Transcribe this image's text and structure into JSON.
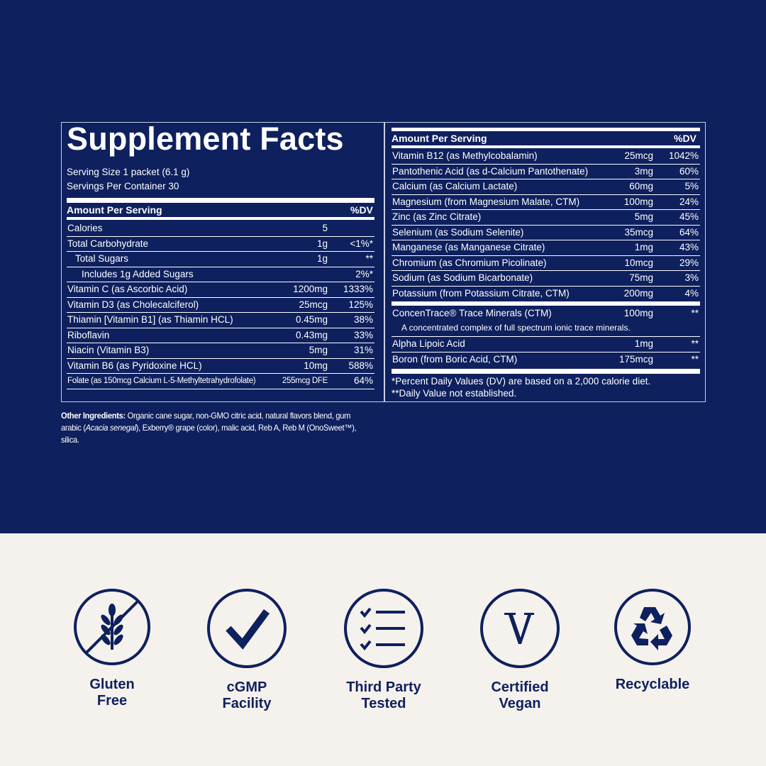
{
  "label": {
    "title": "Supplement Facts",
    "serving_size": "Serving Size 1 packet (6.1 g)",
    "servings_per_container": "Servings Per Container 30",
    "left": {
      "header": {
        "amount": "Amount Per Serving",
        "dv": "%DV"
      },
      "rows": [
        {
          "name": "Calories",
          "amount": "5"
        },
        {
          "name": "Total Carbohydrate",
          "amount": "1g",
          "dv": "<1%*",
          "sub": [
            {
              "name": "Total Sugars",
              "amount": "1g",
              "dv": "**",
              "sub": [
                {
                  "name": "Includes 1g Added Sugars",
                  "dv": "2%*"
                }
              ]
            }
          ]
        },
        {
          "name": "Vitamin C (as Ascorbic Acid)",
          "amount": "1200mg",
          "dv": "1333%"
        },
        {
          "name": "Vitamin D3 (as Cholecalciferol)",
          "amount": "25mcg",
          "dv": "125%"
        },
        {
          "name": "Thiamin [Vitamin B1] (as Thiamin HCL)",
          "amount": "0.45mg",
          "dv": "38%"
        },
        {
          "name": "Riboflavin",
          "amount": "0.43mg",
          "dv": "33%"
        },
        {
          "name": "Niacin (Vitamin B3)",
          "amount": "5mg",
          "dv": "31%"
        },
        {
          "name": "Vitamin B6 (as Pyridoxine HCL)",
          "amount": "10mg",
          "dv": "588%"
        },
        {
          "name": "Folate (as 150mcg Calcium L-5-Methyltetrahydrofolate)",
          "amount": "255mcg DFE",
          "dv": "64%"
        }
      ]
    },
    "right": {
      "header": {
        "amount": "Amount Per Serving",
        "dv": "%DV"
      },
      "rows": [
        {
          "name": "Vitamin B12 (as Methylcobalamin)",
          "amount": "25mcg",
          "dv": "1042%"
        },
        {
          "name": "Pantothenic Acid (as d-Calcium Pantothenate)",
          "amount": "3mg",
          "dv": "60%"
        },
        {
          "name": "Calcium (as Calcium Lactate)",
          "amount": "60mg",
          "dv": "5%"
        },
        {
          "name": "Magnesium (from Magnesium Malate, CTM)",
          "amount": "100mg",
          "dv": "24%"
        },
        {
          "name": "Zinc (as Zinc Citrate)",
          "amount": "5mg",
          "dv": "45%"
        },
        {
          "name": "Selenium (as Sodium Selenite)",
          "amount": "35mcg",
          "dv": "64%"
        },
        {
          "name": "Manganese (as Manganese Citrate)",
          "amount": "1mg",
          "dv": "43%"
        },
        {
          "name": "Chromium (as Chromium Picolinate)",
          "amount": "10mcg",
          "dv": "29%"
        },
        {
          "name": "Sodium (as Sodium Bicarbonate)",
          "amount": "75mg",
          "dv": "3%"
        },
        {
          "name": "Potassium (from Potassium Citrate, CTM)",
          "amount": "200mg",
          "dv": "4%"
        }
      ],
      "other_rows": [
        {
          "name": "ConcenTrace® Trace Minerals (CTM)",
          "amount": "100mg",
          "dv": "**",
          "note": "A concentrated complex of full spectrum ionic trace minerals."
        },
        {
          "name": "Alpha Lipoic Acid",
          "amount": "1mg",
          "dv": "**"
        },
        {
          "name": "Boron (from Boric Acid, CTM)",
          "amount": "175mcg",
          "dv": "**"
        }
      ],
      "footnotes": [
        "*Percent Daily Values (DV) are based on a 2,000 calorie diet.",
        "**Daily Value not established."
      ]
    },
    "other_ingredients": {
      "label": "Other Ingredients:",
      "text_1": "Organic cane sugar, non-GMO citric acid, natural flavors blend, gum arabic (",
      "italic": "Acacia senegal",
      "text_2": "), Exberry® grape (color), malic acid, Reb A, Reb M (OnoSweet™), silica."
    }
  },
  "badges": [
    {
      "lines": [
        "Gluten",
        "Free"
      ]
    },
    {
      "lines": [
        "cGMP",
        "Facility"
      ]
    },
    {
      "lines": [
        "Third Party",
        "Tested"
      ]
    },
    {
      "lines": [
        "Certified",
        "Vegan"
      ]
    },
    {
      "lines": [
        "Recyclable"
      ]
    }
  ]
}
